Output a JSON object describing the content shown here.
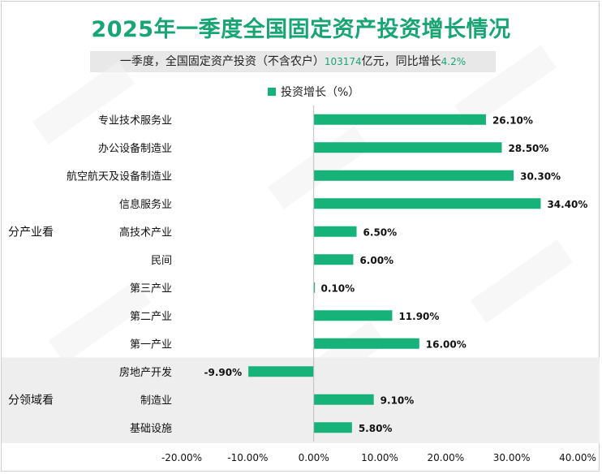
{
  "title": "2025年一季度全国固定资产投资增长情况",
  "subtitle": {
    "before": "一季度，全国固定资产投资（不含农户）",
    "amount": "103174",
    "middle": "亿元，同比增长",
    "rate": "4.2%"
  },
  "colors": {
    "accent": "#17a673",
    "bar": "#17b27a",
    "band": "#eeeeee"
  },
  "chart_data": {
    "type": "bar",
    "orientation": "horizontal",
    "series": [
      {
        "name": "投资增长（%）"
      }
    ],
    "groups": [
      {
        "label": "分产业看",
        "categories": [
          "专业技术服务业",
          "办公设备制造业",
          "航空航天及设备制造业",
          "信息服务业",
          "高技术产业",
          "民间",
          "第三产业",
          "第二产业",
          "第一产业"
        ]
      },
      {
        "label": "分领域看",
        "categories": [
          "房地产开发",
          "制造业",
          "基础设施"
        ]
      }
    ],
    "categories": [
      "专业技术服务业",
      "办公设备制造业",
      "航空航天及设备制造业",
      "信息服务业",
      "高技术产业",
      "民间",
      "第三产业",
      "第二产业",
      "第一产业",
      "房地产开发",
      "制造业",
      "基础设施"
    ],
    "values": [
      26.1,
      28.5,
      30.3,
      34.4,
      6.5,
      6.0,
      0.1,
      11.9,
      16.0,
      -9.9,
      9.1,
      5.8
    ],
    "value_labels": [
      "26.10%",
      "28.50%",
      "30.30%",
      "34.40%",
      "6.50%",
      "6.00%",
      "0.10%",
      "11.90%",
      "16.00%",
      "-9.90%",
      "9.10%",
      "5.80%"
    ],
    "xlim": [
      -20,
      40
    ],
    "xticks": [
      -20,
      -10,
      0,
      10,
      20,
      30,
      40
    ],
    "xtick_labels": [
      "-20.00%",
      "-10.00%",
      "0.00%",
      "10.00%",
      "20.00%",
      "30.00%",
      "40.00%"
    ],
    "grid": false,
    "legend_position": "top"
  }
}
